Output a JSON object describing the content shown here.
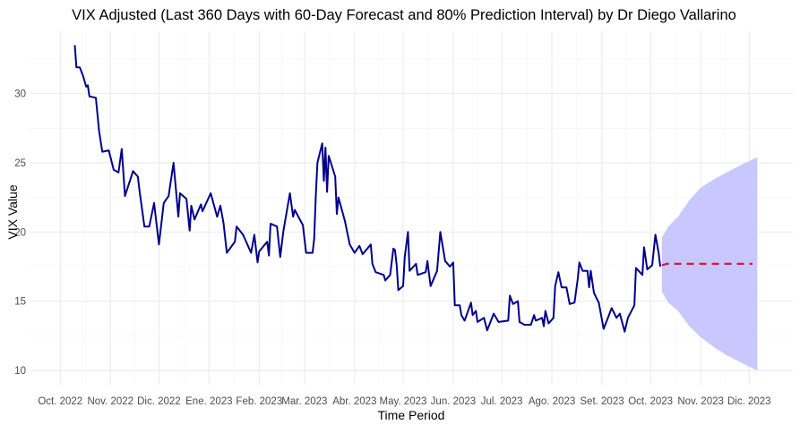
{
  "chart_data": {
    "type": "line",
    "title": "VIX Adjusted (Last 360 Days with 60-Day Forecast and 80% Prediction Interval) by Dr Diego Vallarino",
    "xlabel": "Time Period",
    "ylabel": "VIX Value",
    "xlim": [
      "2022-09-12",
      "2023-12-28"
    ],
    "ylim": [
      8.97,
      34.5
    ],
    "yticks": [
      10,
      15,
      20,
      25,
      30
    ],
    "xticks": [
      {
        "date": "2022-10-01",
        "label": "Oct. 2022"
      },
      {
        "date": "2022-11-01",
        "label": "Nov. 2022"
      },
      {
        "date": "2022-12-01",
        "label": "Dic. 2022"
      },
      {
        "date": "2023-01-01",
        "label": "Ene. 2023"
      },
      {
        "date": "2023-02-01",
        "label": "Feb. 2023"
      },
      {
        "date": "2023-03-01",
        "label": "Mar. 2023"
      },
      {
        "date": "2023-04-01",
        "label": "Abr. 2023"
      },
      {
        "date": "2023-05-01",
        "label": "May. 2023"
      },
      {
        "date": "2023-06-01",
        "label": "Jun. 2023"
      },
      {
        "date": "2023-07-01",
        "label": "Jul. 2023"
      },
      {
        "date": "2023-08-01",
        "label": "Ago. 2023"
      },
      {
        "date": "2023-09-01",
        "label": "Set. 2023"
      },
      {
        "date": "2023-10-01",
        "label": "Oct. 2023"
      },
      {
        "date": "2023-11-01",
        "label": "Nov. 2023"
      },
      {
        "date": "2023-12-01",
        "label": "Dic. 2023"
      }
    ],
    "grid": true,
    "colors": {
      "history": "#00008B",
      "forecast": "#DC143C",
      "interval": "#C8C8FF"
    },
    "history": [
      [
        "2022-10-10",
        33.5
      ],
      [
        "2022-10-11",
        31.9
      ],
      [
        "2022-10-13",
        31.9
      ],
      [
        "2022-10-15",
        31.3
      ],
      [
        "2022-10-17",
        30.5
      ],
      [
        "2022-10-18",
        30.6
      ],
      [
        "2022-10-19",
        29.8
      ],
      [
        "2022-10-23",
        29.7
      ],
      [
        "2022-10-25",
        27.3
      ],
      [
        "2022-10-27",
        25.8
      ],
      [
        "2022-10-31",
        25.9
      ],
      [
        "2022-11-03",
        24.5
      ],
      [
        "2022-11-06",
        24.3
      ],
      [
        "2022-11-08",
        26.0
      ],
      [
        "2022-11-10",
        22.6
      ],
      [
        "2022-11-15",
        24.4
      ],
      [
        "2022-11-18",
        24.0
      ],
      [
        "2022-11-19",
        23.0
      ],
      [
        "2022-11-22",
        20.4
      ],
      [
        "2022-11-25",
        20.4
      ],
      [
        "2022-11-28",
        22.1
      ],
      [
        "2022-12-01",
        19.1
      ],
      [
        "2022-12-04",
        22.1
      ],
      [
        "2022-12-07",
        22.6
      ],
      [
        "2022-12-10",
        25.0
      ],
      [
        "2022-12-13",
        21.1
      ],
      [
        "2022-12-14",
        22.8
      ],
      [
        "2022-12-18",
        22.4
      ],
      [
        "2022-12-20",
        20.1
      ],
      [
        "2022-12-21",
        21.9
      ],
      [
        "2022-12-23",
        20.9
      ],
      [
        "2022-12-27",
        22.0
      ],
      [
        "2022-12-28",
        21.5
      ],
      [
        "2023-01-02",
        22.8
      ],
      [
        "2023-01-06",
        21.1
      ],
      [
        "2023-01-08",
        21.9
      ],
      [
        "2023-01-10",
        20.6
      ],
      [
        "2023-01-12",
        18.5
      ],
      [
        "2023-01-17",
        19.3
      ],
      [
        "2023-01-18",
        20.4
      ],
      [
        "2023-01-22",
        19.8
      ],
      [
        "2023-01-27",
        18.5
      ],
      [
        "2023-01-29",
        19.8
      ],
      [
        "2023-01-31",
        17.8
      ],
      [
        "2023-02-01",
        18.6
      ],
      [
        "2023-02-06",
        19.3
      ],
      [
        "2023-02-07",
        18.3
      ],
      [
        "2023-02-08",
        20.6
      ],
      [
        "2023-02-12",
        20.4
      ],
      [
        "2023-02-14",
        18.2
      ],
      [
        "2023-02-16",
        20.1
      ],
      [
        "2023-02-20",
        22.8
      ],
      [
        "2023-02-22",
        21.1
      ],
      [
        "2023-02-23",
        21.6
      ],
      [
        "2023-02-28",
        20.5
      ],
      [
        "2023-03-02",
        18.5
      ],
      [
        "2023-03-06",
        18.5
      ],
      [
        "2023-03-07",
        19.5
      ],
      [
        "2023-03-08",
        22.6
      ],
      [
        "2023-03-09",
        25.0
      ],
      [
        "2023-03-12",
        26.4
      ],
      [
        "2023-03-13",
        23.7
      ],
      [
        "2023-03-14",
        26.1
      ],
      [
        "2023-03-15",
        22.9
      ],
      [
        "2023-03-16",
        25.5
      ],
      [
        "2023-03-20",
        24.0
      ],
      [
        "2023-03-21",
        21.3
      ],
      [
        "2023-03-22",
        22.5
      ],
      [
        "2023-03-26",
        20.8
      ],
      [
        "2023-03-29",
        19.1
      ],
      [
        "2023-04-01",
        18.5
      ],
      [
        "2023-04-04",
        19.0
      ],
      [
        "2023-04-06",
        18.4
      ],
      [
        "2023-04-11",
        19.1
      ],
      [
        "2023-04-12",
        17.7
      ],
      [
        "2023-04-14",
        17.1
      ],
      [
        "2023-04-19",
        16.9
      ],
      [
        "2023-04-20",
        16.5
      ],
      [
        "2023-04-23",
        16.9
      ],
      [
        "2023-04-25",
        18.8
      ],
      [
        "2023-04-26",
        18.7
      ],
      [
        "2023-04-27",
        17.6
      ],
      [
        "2023-04-28",
        15.8
      ],
      [
        "2023-05-01",
        16.1
      ],
      [
        "2023-05-02",
        18.2
      ],
      [
        "2023-05-04",
        20.0
      ],
      [
        "2023-05-05",
        17.2
      ],
      [
        "2023-05-09",
        17.7
      ],
      [
        "2023-05-10",
        16.9
      ],
      [
        "2023-05-15",
        17.1
      ],
      [
        "2023-05-16",
        17.9
      ],
      [
        "2023-05-18",
        16.1
      ],
      [
        "2023-05-22",
        17.2
      ],
      [
        "2023-05-24",
        20.0
      ],
      [
        "2023-05-27",
        17.9
      ],
      [
        "2023-05-30",
        17.5
      ],
      [
        "2023-06-01",
        17.8
      ],
      [
        "2023-06-02",
        14.7
      ],
      [
        "2023-06-05",
        14.7
      ],
      [
        "2023-06-06",
        14.0
      ],
      [
        "2023-06-08",
        13.6
      ],
      [
        "2023-06-12",
        14.9
      ],
      [
        "2023-06-13",
        14.0
      ],
      [
        "2023-06-15",
        14.3
      ],
      [
        "2023-06-16",
        13.5
      ],
      [
        "2023-06-20",
        13.8
      ],
      [
        "2023-06-22",
        12.9
      ],
      [
        "2023-06-26",
        14.1
      ],
      [
        "2023-06-29",
        13.5
      ],
      [
        "2023-07-05",
        13.6
      ],
      [
        "2023-07-06",
        15.4
      ],
      [
        "2023-07-08",
        14.8
      ],
      [
        "2023-07-11",
        15.0
      ],
      [
        "2023-07-12",
        13.5
      ],
      [
        "2023-07-15",
        13.3
      ],
      [
        "2023-07-19",
        13.3
      ],
      [
        "2023-07-21",
        14.0
      ],
      [
        "2023-07-22",
        13.6
      ],
      [
        "2023-07-26",
        13.8
      ],
      [
        "2023-07-27",
        13.2
      ],
      [
        "2023-07-28",
        14.3
      ],
      [
        "2023-07-30",
        13.4
      ],
      [
        "2023-08-02",
        13.8
      ],
      [
        "2023-08-03",
        16.1
      ],
      [
        "2023-08-05",
        17.1
      ],
      [
        "2023-08-07",
        16.0
      ],
      [
        "2023-08-10",
        16.0
      ],
      [
        "2023-08-12",
        14.8
      ],
      [
        "2023-08-15",
        14.9
      ],
      [
        "2023-08-17",
        16.6
      ],
      [
        "2023-08-18",
        17.8
      ],
      [
        "2023-08-20",
        17.2
      ],
      [
        "2023-08-23",
        17.2
      ],
      [
        "2023-08-24",
        16.0
      ],
      [
        "2023-08-25",
        17.2
      ],
      [
        "2023-08-27",
        15.6
      ],
      [
        "2023-08-30",
        14.9
      ],
      [
        "2023-09-02",
        13.0
      ],
      [
        "2023-09-07",
        14.5
      ],
      [
        "2023-09-10",
        13.8
      ],
      [
        "2023-09-12",
        14.1
      ],
      [
        "2023-09-15",
        12.8
      ],
      [
        "2023-09-17",
        13.8
      ],
      [
        "2023-09-21",
        14.7
      ],
      [
        "2023-09-22",
        17.4
      ],
      [
        "2023-09-26",
        16.9
      ],
      [
        "2023-09-27",
        18.9
      ],
      [
        "2023-09-29",
        17.3
      ],
      [
        "2023-10-02",
        17.6
      ],
      [
        "2023-10-04",
        19.8
      ],
      [
        "2023-10-06",
        18.5
      ],
      [
        "2023-10-07",
        17.5
      ]
    ],
    "forecast": [
      [
        "2023-10-08",
        17.6
      ],
      [
        "2023-10-11",
        17.7
      ],
      [
        "2023-12-03",
        17.7
      ]
    ],
    "interval": [
      [
        "2023-10-08",
        15.7,
        19.6
      ],
      [
        "2023-10-12",
        14.9,
        20.4
      ],
      [
        "2023-10-18",
        14.3,
        21.1
      ],
      [
        "2023-10-25",
        13.2,
        22.3
      ],
      [
        "2023-11-01",
        12.4,
        23.2
      ],
      [
        "2023-11-09",
        11.7,
        23.8
      ],
      [
        "2023-11-17",
        11.1,
        24.3
      ],
      [
        "2023-11-27",
        10.5,
        24.9
      ],
      [
        "2023-12-06",
        10.0,
        25.4
      ]
    ]
  }
}
